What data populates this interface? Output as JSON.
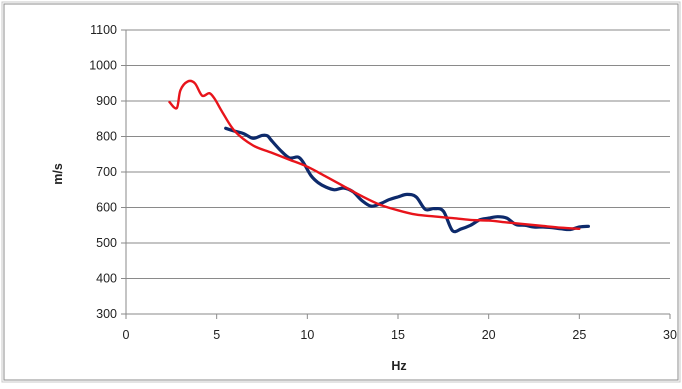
{
  "chart_data": {
    "type": "line",
    "title": "",
    "xlabel": "Hz",
    "ylabel": "m/s",
    "xlim": [
      0,
      30
    ],
    "ylim": [
      300,
      1100
    ],
    "x_ticks": [
      0,
      5,
      10,
      15,
      20,
      25,
      30
    ],
    "y_ticks": [
      300,
      400,
      500,
      600,
      700,
      800,
      900,
      1000,
      1100
    ],
    "grid": "horizontal",
    "legend": "none",
    "series": [
      {
        "color": "#0d2a6b",
        "x": [
          5.5,
          6.0,
          6.5,
          7.0,
          7.5,
          7.8,
          8.0,
          8.5,
          9.0,
          9.5,
          9.8,
          10.2,
          10.6,
          11.0,
          11.5,
          12.0,
          12.5,
          13.0,
          13.5,
          14.0,
          14.5,
          15.0,
          15.5,
          16.0,
          16.5,
          17.0,
          17.5,
          18.0,
          18.5,
          19.0,
          19.5,
          20.0,
          20.5,
          21.0,
          21.5,
          22.0,
          22.5,
          23.0,
          23.5,
          24.0,
          24.5,
          25.0,
          25.5
        ],
        "y": [
          823,
          815,
          808,
          795,
          803,
          802,
          790,
          762,
          740,
          742,
          725,
          690,
          670,
          658,
          650,
          655,
          645,
          620,
          604,
          610,
          622,
          630,
          637,
          630,
          595,
          597,
          590,
          535,
          540,
          550,
          565,
          570,
          574,
          570,
          552,
          550,
          545,
          545,
          543,
          540,
          538,
          545,
          547
        ]
      },
      {
        "color": "#e8141b",
        "x": [
          2.4,
          2.8,
          3.0,
          3.4,
          3.8,
          4.2,
          4.6,
          4.9,
          5.3,
          6.0,
          7.0,
          8.0,
          9.0,
          10.0,
          11.0,
          12.0,
          13.0,
          14.0,
          15.0,
          16.0,
          17.0,
          18.0,
          19.0,
          20.0,
          21.0,
          22.0,
          23.0,
          24.0,
          25.0
        ],
        "y": [
          897,
          880,
          930,
          955,
          950,
          915,
          922,
          905,
          870,
          815,
          775,
          755,
          735,
          715,
          688,
          660,
          632,
          608,
          592,
          580,
          575,
          570,
          565,
          563,
          558,
          553,
          548,
          543,
          540
        ]
      }
    ]
  }
}
